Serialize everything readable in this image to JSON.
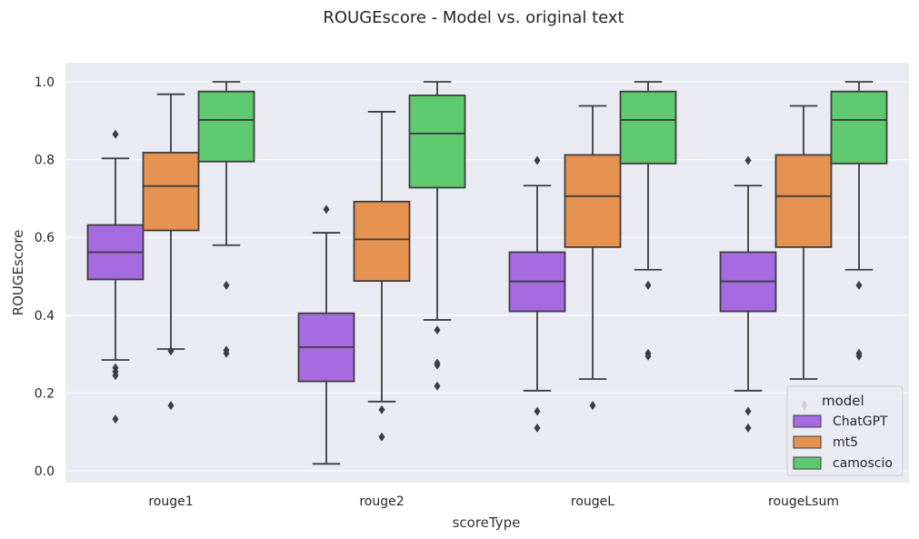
{
  "chart_data": {
    "type": "boxplot",
    "title": "ROUGEscore - Model vs. original text",
    "xlabel": "scoreType",
    "ylabel": "ROUGEscore",
    "categories": [
      "rouge1",
      "rouge2",
      "rougeL",
      "rougeLsum"
    ],
    "ylim": [
      -0.03,
      1.05
    ],
    "yticks": [
      "0.0",
      "0.2",
      "0.4",
      "0.6",
      "0.8",
      "1.0"
    ],
    "grid": true,
    "legend": {
      "title": "model",
      "position": "bottom-right"
    },
    "series": [
      {
        "name": "ChatGPT",
        "color": "#a66ae1",
        "boxes": [
          {
            "whislo": 0.285,
            "q1": 0.492,
            "med": 0.562,
            "q3": 0.632,
            "whishi": 0.803,
            "fliers": [
              0.865,
              0.265,
              0.255,
              0.245,
              0.133
            ]
          },
          {
            "whislo": 0.018,
            "q1": 0.23,
            "med": 0.318,
            "q3": 0.405,
            "whishi": 0.612,
            "fliers": [
              0.672
            ]
          },
          {
            "whislo": 0.206,
            "q1": 0.41,
            "med": 0.487,
            "q3": 0.562,
            "whishi": 0.733,
            "fliers": [
              0.798,
              0.153,
              0.11
            ]
          },
          {
            "whislo": 0.206,
            "q1": 0.41,
            "med": 0.487,
            "q3": 0.562,
            "whishi": 0.733,
            "fliers": [
              0.798,
              0.153,
              0.11
            ]
          }
        ]
      },
      {
        "name": "mt5",
        "color": "#e5914f",
        "boxes": [
          {
            "whislo": 0.313,
            "q1": 0.618,
            "med": 0.732,
            "q3": 0.818,
            "whishi": 0.968,
            "fliers": [
              0.308,
              0.168
            ]
          },
          {
            "whislo": 0.178,
            "q1": 0.488,
            "med": 0.595,
            "q3": 0.692,
            "whishi": 0.923,
            "fliers": [
              0.157,
              0.087
            ]
          },
          {
            "whislo": 0.236,
            "q1": 0.575,
            "med": 0.706,
            "q3": 0.812,
            "whishi": 0.938,
            "fliers": [
              0.168
            ]
          },
          {
            "whislo": 0.236,
            "q1": 0.575,
            "med": 0.706,
            "q3": 0.812,
            "whishi": 0.938,
            "fliers": []
          }
        ]
      },
      {
        "name": "camoscio",
        "color": "#5ec96f",
        "boxes": [
          {
            "whislo": 0.58,
            "q1": 0.795,
            "med": 0.902,
            "q3": 0.975,
            "whishi": 1.0,
            "fliers": [
              0.477,
              0.31,
              0.302
            ]
          },
          {
            "whislo": 0.388,
            "q1": 0.728,
            "med": 0.867,
            "q3": 0.965,
            "whishi": 1.0,
            "fliers": [
              0.362,
              0.277,
              0.272,
              0.218
            ]
          },
          {
            "whislo": 0.517,
            "q1": 0.79,
            "med": 0.902,
            "q3": 0.975,
            "whishi": 1.0,
            "fliers": [
              0.477,
              0.302,
              0.295
            ]
          },
          {
            "whislo": 0.517,
            "q1": 0.79,
            "med": 0.902,
            "q3": 0.975,
            "whishi": 1.0,
            "fliers": [
              0.477,
              0.302,
              0.295
            ]
          }
        ]
      }
    ]
  }
}
